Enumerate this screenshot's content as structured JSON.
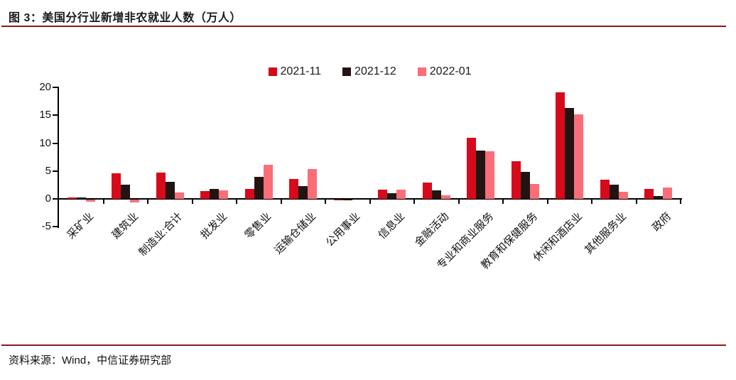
{
  "header": {
    "title": "图 3：美国分行业新增非农就业人数（万人）"
  },
  "footer": {
    "source": "资料来源：Wind，中信证券研究部"
  },
  "colors": {
    "accent_line": "#8C1A1C",
    "axis": "#000000",
    "text": "#1a1a1a"
  },
  "chart_data": {
    "type": "bar",
    "title": "美国分行业新增非农就业人数（万人）",
    "xlabel": "",
    "ylabel": "",
    "ylim": [
      -5,
      20
    ],
    "y_ticks": [
      20,
      15,
      10,
      5,
      0,
      -5
    ],
    "grid": false,
    "legend_position": "top-center",
    "categories": [
      "采矿业",
      "建筑业",
      "制造业:合计",
      "批发业",
      "零售业",
      "运输仓储业",
      "公用事业",
      "信息业",
      "金融活动",
      "专业和商业服务",
      "教育和保健服务",
      "休闲和酒店业",
      "其他服务业",
      "政府"
    ],
    "series": [
      {
        "name": "2021-11",
        "color": "#D60A1A",
        "values": [
          0.3,
          4.6,
          4.7,
          1.4,
          1.8,
          3.6,
          -0.1,
          1.6,
          2.9,
          11.0,
          6.8,
          19.1,
          3.4,
          1.8
        ]
      },
      {
        "name": "2021-12",
        "color": "#231414",
        "values": [
          0.2,
          2.5,
          3.0,
          1.8,
          3.9,
          2.3,
          -0.1,
          1.0,
          1.5,
          8.7,
          4.9,
          16.3,
          2.5,
          0.5
        ]
      },
      {
        "name": "2022-01",
        "color": "#FA6E79",
        "values": [
          -0.4,
          -0.5,
          1.1,
          1.5,
          6.1,
          5.3,
          0.0,
          1.6,
          0.7,
          8.5,
          2.7,
          15.1,
          1.3,
          2.1
        ]
      }
    ]
  }
}
